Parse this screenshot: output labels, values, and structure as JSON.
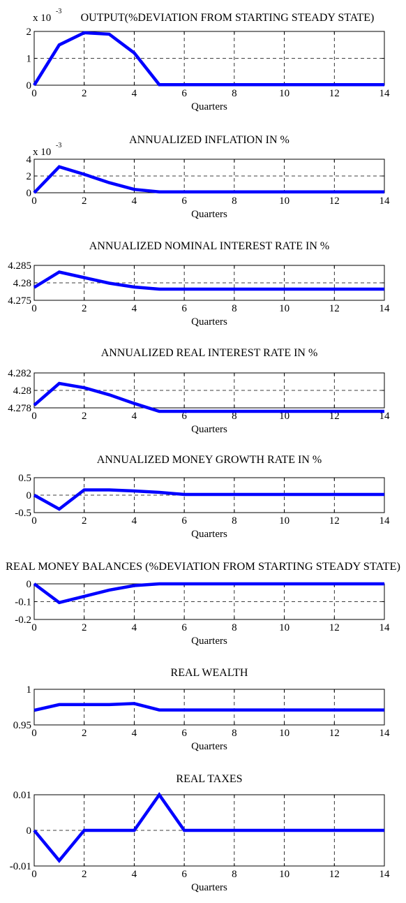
{
  "chart_data": [
    {
      "type": "line",
      "title": "OUTPUT(%DEVIATION FROM STARTING STEADY STATE)",
      "xlabel": "Quarters",
      "ylabel": "",
      "exponent_base": "x 10",
      "exponent_power": "-3",
      "xlim": [
        0,
        14
      ],
      "ylim": [
        0,
        2
      ],
      "xticks": [
        0,
        2,
        4,
        6,
        8,
        10,
        12,
        14
      ],
      "xtick_labels": [
        "0",
        "2",
        "4",
        "6",
        "8",
        "10",
        "12",
        "14"
      ],
      "yticks": [
        0,
        1,
        2
      ],
      "ytick_labels": [
        "0",
        "1",
        "2"
      ],
      "grid": true,
      "line_color": "#0000ff",
      "series": [
        {
          "x": [
            0,
            1,
            2,
            3,
            4,
            5,
            6,
            7,
            8,
            9,
            10,
            11,
            12,
            13,
            14
          ],
          "y": [
            0,
            1.5,
            1.95,
            1.9,
            1.2,
            0.02,
            0.02,
            0.02,
            0.02,
            0.02,
            0.02,
            0.02,
            0.02,
            0.02,
            0.02
          ]
        }
      ]
    },
    {
      "type": "line",
      "title": "ANNUALIZED INFLATION IN %",
      "xlabel": "Quarters",
      "ylabel": "",
      "exponent_base": "x 10",
      "exponent_power": "-3",
      "xlim": [
        0,
        14
      ],
      "ylim": [
        0,
        4
      ],
      "xticks": [
        0,
        2,
        4,
        6,
        8,
        10,
        12,
        14
      ],
      "xtick_labels": [
        "0",
        "2",
        "4",
        "6",
        "8",
        "10",
        "12",
        "14"
      ],
      "yticks": [
        0,
        2,
        4
      ],
      "ytick_labels": [
        "0",
        "2",
        "4"
      ],
      "grid": true,
      "line_color": "#0000ff",
      "series": [
        {
          "x": [
            0,
            1,
            2,
            3,
            4,
            5,
            6,
            7,
            8,
            9,
            10,
            11,
            12,
            13,
            14
          ],
          "y": [
            0,
            3.1,
            2.2,
            1.2,
            0.4,
            0.1,
            0.1,
            0.1,
            0.1,
            0.1,
            0.1,
            0.1,
            0.1,
            0.1,
            0.1
          ]
        }
      ]
    },
    {
      "type": "line",
      "title": "ANNUALIZED NOMINAL INTEREST RATE IN %",
      "xlabel": "Quarters",
      "ylabel": "",
      "xlim": [
        0,
        14
      ],
      "ylim": [
        4.275,
        4.285
      ],
      "xticks": [
        0,
        2,
        4,
        6,
        8,
        10,
        12,
        14
      ],
      "xtick_labels": [
        "0",
        "2",
        "4",
        "6",
        "8",
        "10",
        "12",
        "14"
      ],
      "yticks": [
        4.275,
        4.28,
        4.285
      ],
      "ytick_labels": [
        "4.275",
        "4.28",
        "4.285"
      ],
      "grid": true,
      "line_color": "#0000ff",
      "series": [
        {
          "x": [
            0,
            1,
            2,
            3,
            4,
            5,
            6,
            7,
            8,
            9,
            10,
            11,
            12,
            13,
            14
          ],
          "y": [
            4.2787,
            4.2831,
            4.2815,
            4.2799,
            4.2788,
            4.2782,
            4.2782,
            4.2782,
            4.2782,
            4.2782,
            4.2782,
            4.2782,
            4.2782,
            4.2782,
            4.2782
          ]
        }
      ]
    },
    {
      "type": "line",
      "title": "ANNUALIZED REAL INTEREST RATE IN %",
      "xlabel": "Quarters",
      "ylabel": "",
      "xlim": [
        0,
        14
      ],
      "ylim": [
        4.278,
        4.282
      ],
      "xticks": [
        0,
        2,
        4,
        6,
        8,
        10,
        12,
        14
      ],
      "xtick_labels": [
        "0",
        "2",
        "4",
        "6",
        "8",
        "10",
        "12",
        "14"
      ],
      "yticks": [
        4.278,
        4.28,
        4.282
      ],
      "ytick_labels": [
        "4.278",
        "4.28",
        "4.282"
      ],
      "grid": true,
      "line_color": "#0000ff",
      "series": [
        {
          "x": [
            0,
            1,
            2,
            3,
            4,
            5,
            6,
            7,
            8,
            9,
            10,
            11,
            12,
            13,
            14
          ],
          "y": [
            4.2783,
            4.2808,
            4.2803,
            4.2795,
            4.2785,
            4.2776,
            4.2776,
            4.2776,
            4.2776,
            4.2776,
            4.2776,
            4.2776,
            4.2776,
            4.2776,
            4.2776
          ]
        }
      ]
    },
    {
      "type": "line",
      "title": "ANNUALIZED MONEY GROWTH RATE IN %",
      "xlabel": "Quarters",
      "ylabel": "",
      "xlim": [
        0,
        14
      ],
      "ylim": [
        -0.5,
        0.5
      ],
      "xticks": [
        0,
        2,
        4,
        6,
        8,
        10,
        12,
        14
      ],
      "xtick_labels": [
        "0",
        "2",
        "4",
        "6",
        "8",
        "10",
        "12",
        "14"
      ],
      "yticks": [
        -0.5,
        0,
        0.5
      ],
      "ytick_labels": [
        "-0.5",
        "0",
        "0.5"
      ],
      "grid": true,
      "line_color": "#0000ff",
      "series": [
        {
          "x": [
            0,
            1,
            2,
            3,
            4,
            5,
            6,
            7,
            8,
            9,
            10,
            11,
            12,
            13,
            14
          ],
          "y": [
            0,
            -0.4,
            0.15,
            0.15,
            0.12,
            0.08,
            0.02,
            0.02,
            0.02,
            0.02,
            0.02,
            0.02,
            0.02,
            0.02,
            0.02
          ]
        }
      ]
    },
    {
      "type": "line",
      "title": "REAL MONEY BALANCES (%DEVIATION FROM STARTING STEADY STATE)",
      "xlabel": "Quarters",
      "ylabel": "",
      "xlim": [
        0,
        14
      ],
      "ylim": [
        -0.2,
        0
      ],
      "xticks": [
        0,
        2,
        4,
        6,
        8,
        10,
        12,
        14
      ],
      "xtick_labels": [
        "0",
        "2",
        "4",
        "6",
        "8",
        "10",
        "12",
        "14"
      ],
      "yticks": [
        -0.2,
        -0.1,
        0
      ],
      "ytick_labels": [
        "-0.2",
        "-0.1",
        "0"
      ],
      "grid": true,
      "line_color": "#0000ff",
      "series": [
        {
          "x": [
            0,
            1,
            2,
            3,
            4,
            5,
            6,
            7,
            8,
            9,
            10,
            11,
            12,
            13,
            14
          ],
          "y": [
            0,
            -0.105,
            -0.07,
            -0.035,
            -0.01,
            0,
            0,
            0,
            0,
            0,
            0,
            0,
            0,
            0,
            0
          ]
        }
      ]
    },
    {
      "type": "line",
      "title": "REAL WEALTH",
      "xlabel": "Quarters",
      "ylabel": "",
      "xlim": [
        0,
        14
      ],
      "ylim": [
        0.95,
        1
      ],
      "xticks": [
        0,
        2,
        4,
        6,
        8,
        10,
        12,
        14
      ],
      "xtick_labels": [
        "0",
        "2",
        "4",
        "6",
        "8",
        "10",
        "12",
        "14"
      ],
      "yticks": [
        0.95,
        1
      ],
      "ytick_labels": [
        "0.95",
        "1"
      ],
      "grid": true,
      "line_color": "#0000ff",
      "series": [
        {
          "x": [
            0,
            1,
            2,
            3,
            4,
            5,
            6,
            7,
            8,
            9,
            10,
            11,
            12,
            13,
            14
          ],
          "y": [
            0.9705,
            0.9785,
            0.9785,
            0.9785,
            0.98,
            0.971,
            0.971,
            0.971,
            0.971,
            0.971,
            0.971,
            0.971,
            0.971,
            0.971,
            0.971
          ]
        }
      ]
    },
    {
      "type": "line",
      "title": "REAL TAXES",
      "xlabel": "Quarters",
      "ylabel": "",
      "xlim": [
        0,
        14
      ],
      "ylim": [
        -0.01,
        0.01
      ],
      "xticks": [
        0,
        2,
        4,
        6,
        8,
        10,
        12,
        14
      ],
      "xtick_labels": [
        "0",
        "2",
        "4",
        "6",
        "8",
        "10",
        "12",
        "14"
      ],
      "yticks": [
        -0.01,
        0,
        0.01
      ],
      "ytick_labels": [
        "-0.01",
        "0",
        "0.01"
      ],
      "grid": true,
      "line_color": "#0000ff",
      "series": [
        {
          "x": [
            0,
            1,
            2,
            3,
            4,
            5,
            6,
            7,
            8,
            9,
            10,
            11,
            12,
            13,
            14
          ],
          "y": [
            0,
            -0.0085,
            0,
            0,
            0,
            0.01,
            0,
            0,
            0,
            0,
            0,
            0,
            0,
            0,
            0
          ]
        }
      ]
    }
  ]
}
